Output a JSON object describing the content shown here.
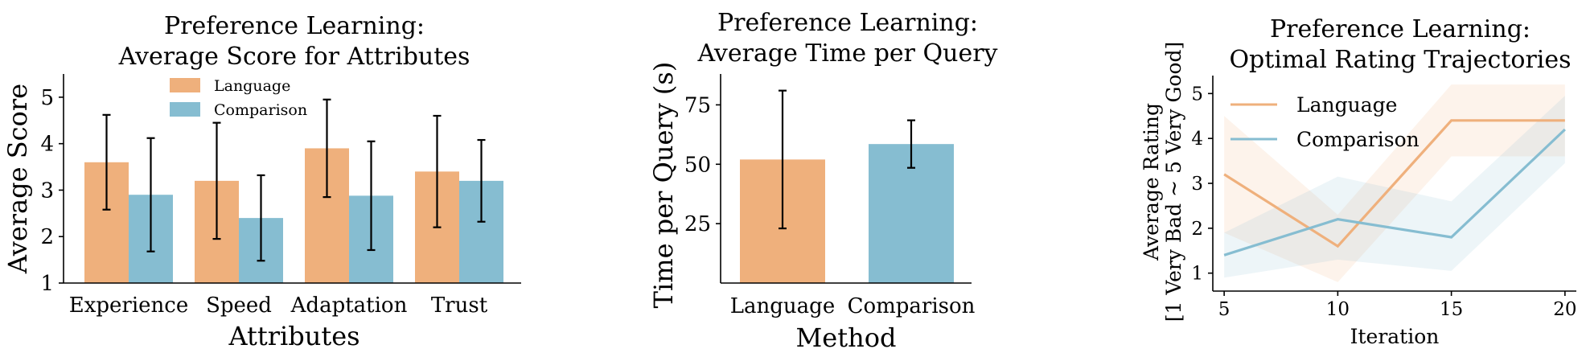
{
  "colors": {
    "language": "#efb07c",
    "comparison": "#86bdd1"
  },
  "chart_data": [
    {
      "type": "bar",
      "title": [
        "Preference Learning:",
        "Average Score for Attributes"
      ],
      "xlabel": "Attributes",
      "ylabel": "Average Score",
      "categories": [
        "Experience",
        "Speed",
        "Adaptation",
        "Trust"
      ],
      "ylim": [
        1,
        5.5
      ],
      "yticks": [
        1,
        2,
        3,
        4,
        5
      ],
      "legend_position": "top-center",
      "series": [
        {
          "name": "Language",
          "values": [
            3.6,
            3.2,
            3.9,
            3.4
          ],
          "err": [
            1.02,
            1.25,
            1.05,
            1.2
          ]
        },
        {
          "name": "Comparison",
          "values": [
            2.9,
            2.4,
            2.88,
            3.2
          ],
          "err": [
            1.22,
            0.92,
            1.17,
            0.88
          ]
        }
      ]
    },
    {
      "type": "bar",
      "title": [
        "Preference Learning:",
        "Average Time per Query"
      ],
      "xlabel": "Method",
      "ylabel": "Time per Query (s)",
      "categories": [
        "Language",
        "Comparison"
      ],
      "ylim": [
        0,
        88
      ],
      "yticks": [
        25,
        50,
        75
      ],
      "values": [
        52,
        58.5
      ],
      "err": [
        29,
        10
      ]
    },
    {
      "type": "line",
      "title": [
        "Preference Learning:",
        "Optimal Rating Trajectories"
      ],
      "xlabel": "Iteration",
      "ylabel": [
        "Average Rating",
        "[1 Very Bad ~ 5 Very Good]"
      ],
      "x": [
        5,
        10,
        15,
        20
      ],
      "xlim": [
        4.5,
        20.5
      ],
      "ylim": [
        0.6,
        5.4
      ],
      "xticks": [
        5,
        10,
        15,
        20
      ],
      "yticks": [
        1,
        2,
        3,
        4,
        5
      ],
      "legend_position": "top-left",
      "series": [
        {
          "name": "Language",
          "values": [
            3.2,
            1.6,
            4.4,
            4.4
          ],
          "lower": [
            1.9,
            0.8,
            3.6,
            3.6
          ],
          "upper": [
            4.5,
            2.3,
            5.2,
            5.2
          ]
        },
        {
          "name": "Comparison",
          "values": [
            1.4,
            2.2,
            1.8,
            4.2
          ],
          "lower": [
            0.9,
            1.3,
            1.05,
            3.45
          ],
          "upper": [
            1.9,
            3.15,
            2.6,
            4.95
          ]
        }
      ]
    }
  ]
}
